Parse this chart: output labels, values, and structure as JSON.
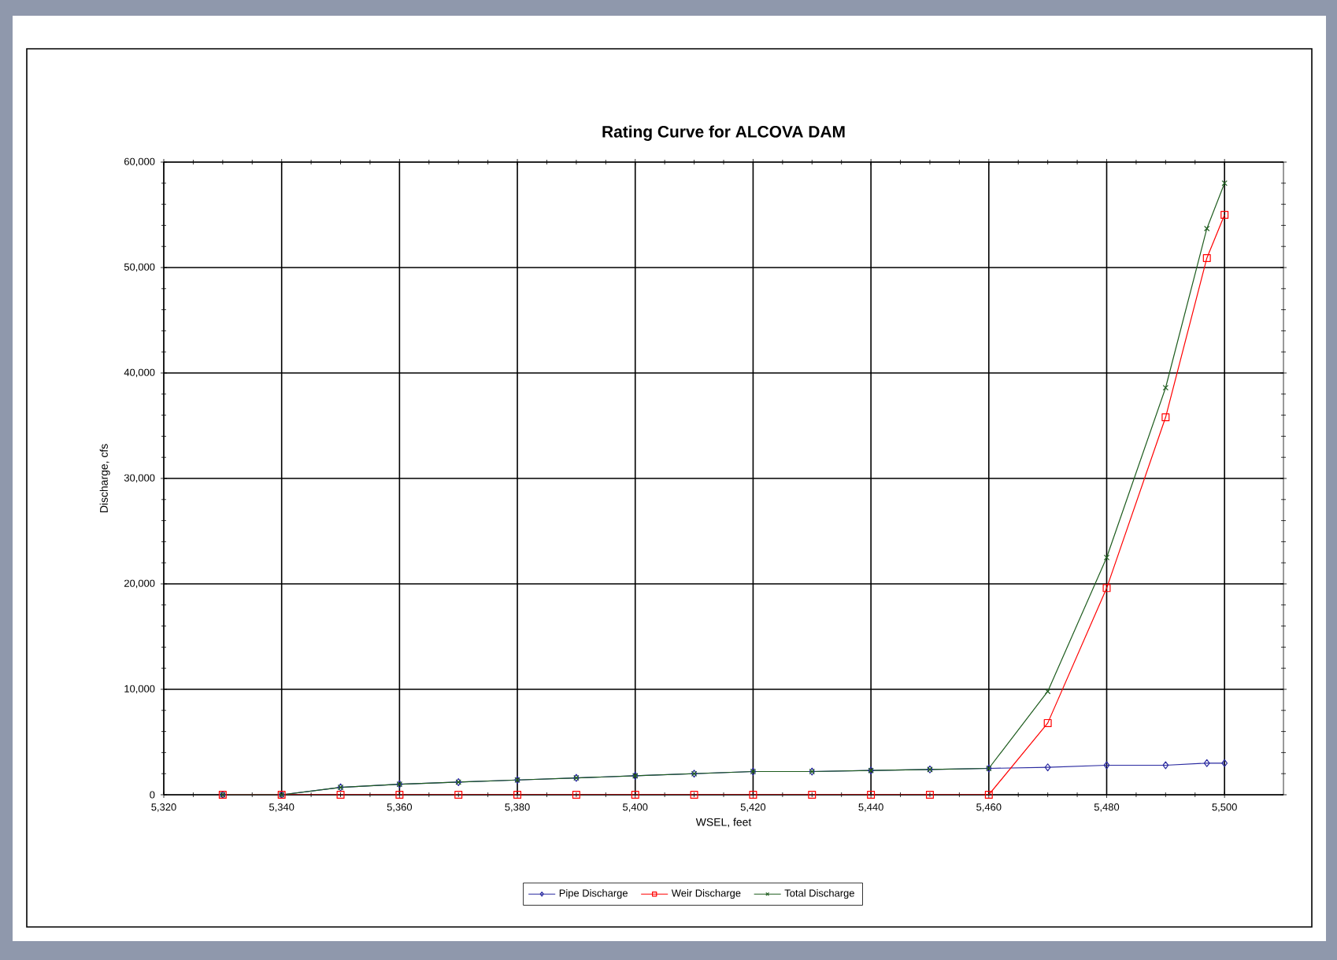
{
  "chart_data": {
    "type": "line",
    "title": "Rating Curve for ALCOVA DAM",
    "xlabel": "WSEL, feet",
    "ylabel": "Discharge, cfs",
    "xlim": [
      5320,
      5510
    ],
    "ylim": [
      0,
      60000
    ],
    "xticks": [
      {
        "value": 5320,
        "label": "5,320"
      },
      {
        "value": 5340,
        "label": "5,340"
      },
      {
        "value": 5360,
        "label": "5,360"
      },
      {
        "value": 5380,
        "label": "5,380"
      },
      {
        "value": 5400,
        "label": "5,400"
      },
      {
        "value": 5420,
        "label": "5,420"
      },
      {
        "value": 5440,
        "label": "5,440"
      },
      {
        "value": 5460,
        "label": "5,460"
      },
      {
        "value": 5480,
        "label": "5,480"
      },
      {
        "value": 5500,
        "label": "5,500"
      }
    ],
    "yticks": [
      0,
      {
        "value": 10000,
        "label": "10,000"
      },
      {
        "value": 20000,
        "label": "20,000"
      },
      {
        "value": 30000,
        "label": "30,000"
      },
      {
        "value": 40000,
        "label": "40,000"
      },
      {
        "value": 50000,
        "label": "50,000"
      },
      {
        "value": 60000,
        "label": "60,000"
      }
    ],
    "x": [
      5330,
      5340,
      5350,
      5360,
      5370,
      5380,
      5390,
      5400,
      5410,
      5420,
      5430,
      5440,
      5450,
      5460,
      5470,
      5480,
      5490,
      5497,
      5500
    ],
    "series": [
      {
        "name": "Pipe Discharge",
        "color": "#2a2aa0",
        "marker": "diamond",
        "values": [
          0,
          0,
          700,
          1000,
          1200,
          1400,
          1600,
          1800,
          2000,
          2200,
          2200,
          2300,
          2400,
          2500,
          2600,
          2800,
          2800,
          3000,
          3000
        ]
      },
      {
        "name": "Weir Discharge",
        "color": "#ff0000",
        "marker": "square",
        "values": [
          0,
          0,
          0,
          0,
          0,
          0,
          0,
          0,
          0,
          0,
          0,
          0,
          0,
          0,
          6800,
          19600,
          35800,
          50900,
          55000
        ]
      },
      {
        "name": "Total Discharge",
        "color": "#1e5c1e",
        "marker": "cross",
        "values": [
          0,
          0,
          700,
          1000,
          1200,
          1400,
          1600,
          1800,
          2000,
          2200,
          2200,
          2300,
          2400,
          2500,
          9800,
          22500,
          38600,
          53700,
          58000
        ]
      }
    ],
    "grid": true,
    "legend": "bottom"
  }
}
